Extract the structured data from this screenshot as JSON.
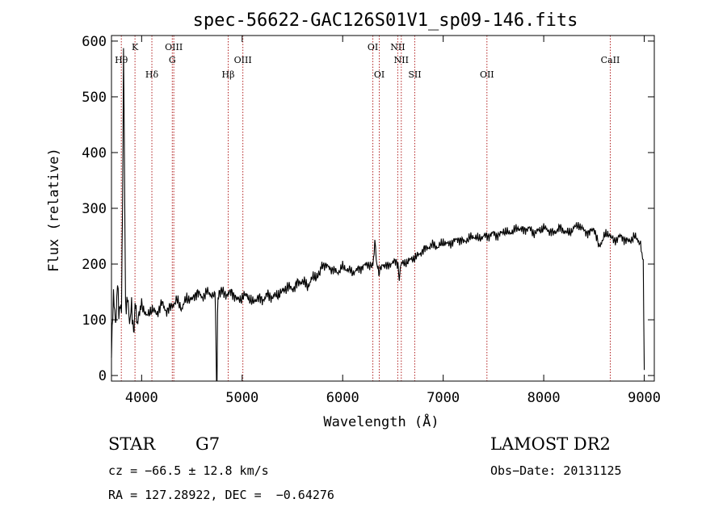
{
  "chart_data": {
    "type": "line",
    "title": "spec-56622-GAC126S01V1_sp09-146.fits",
    "xlabel": "Wavelength (Å)",
    "ylabel": "Flux (relative)",
    "xlim": [
      3700,
      9100
    ],
    "ylim": [
      -10,
      610
    ],
    "xticks": [
      4000,
      5000,
      6000,
      7000,
      8000,
      9000
    ],
    "yticks": [
      0,
      100,
      200,
      300,
      400,
      500,
      600
    ],
    "series": [
      {
        "x": [
          3700,
          3720,
          3740,
          3760,
          3780,
          3800,
          3815,
          3820,
          3840,
          3860,
          3880,
          3900,
          3920,
          3935,
          3950,
          3980,
          4000,
          4050,
          4100,
          4150,
          4200,
          4250,
          4300,
          4350,
          4400,
          4450,
          4500,
          4550,
          4600,
          4650,
          4700,
          4730,
          4740,
          4745,
          4750,
          4755,
          4760,
          4770,
          4800,
          4850,
          4900,
          4950,
          5000,
          5050,
          5100,
          5150,
          5200,
          5250,
          5300,
          5350,
          5400,
          5450,
          5500,
          5550,
          5600,
          5650,
          5700,
          5750,
          5780,
          5800,
          5850,
          5900,
          5950,
          6000,
          6050,
          6100,
          6150,
          6200,
          6250,
          6300,
          6320,
          6340,
          6360,
          6400,
          6450,
          6500,
          6550,
          6563,
          6580,
          6600,
          6650,
          6700,
          6750,
          6800,
          6850,
          6900,
          6950,
          7000,
          7050,
          7100,
          7150,
          7200,
          7250,
          7300,
          7350,
          7400,
          7450,
          7500,
          7550,
          7600,
          7650,
          7700,
          7750,
          7800,
          7850,
          7900,
          7950,
          8000,
          8050,
          8100,
          8150,
          8200,
          8250,
          8300,
          8350,
          8400,
          8450,
          8500,
          8550,
          8600,
          8650,
          8700,
          8750,
          8800,
          8850,
          8900,
          8950,
          8970,
          8990,
          9000
        ],
        "y": [
          40,
          150,
          90,
          160,
          110,
          130,
          420,
          600,
          120,
          140,
          95,
          125,
          80,
          130,
          95,
          120,
          130,
          105,
          120,
          110,
          130,
          115,
          125,
          135,
          120,
          140,
          135,
          150,
          140,
          150,
          145,
          150,
          60,
          -10,
          -10,
          120,
          140,
          145,
          150,
          145,
          150,
          135,
          140,
          145,
          130,
          140,
          135,
          145,
          140,
          145,
          150,
          160,
          155,
          165,
          170,
          160,
          175,
          180,
          190,
          200,
          195,
          190,
          185,
          195,
          190,
          185,
          190,
          195,
          200,
          195,
          240,
          200,
          185,
          200,
          195,
          205,
          200,
          170,
          205,
          200,
          205,
          210,
          215,
          225,
          230,
          235,
          230,
          240,
          235,
          240,
          245,
          240,
          245,
          250,
          245,
          250,
          250,
          255,
          250,
          260,
          255,
          260,
          265,
          260,
          265,
          255,
          260,
          265,
          260,
          255,
          265,
          260,
          255,
          265,
          270,
          260,
          255,
          265,
          230,
          250,
          255,
          240,
          250,
          245,
          240,
          250,
          240,
          230,
          200,
          10
        ]
      }
    ],
    "lines": [
      {
        "label": "Hθ",
        "x": 3798,
        "row": 2
      },
      {
        "label": "K",
        "x": 3934,
        "row": 1
      },
      {
        "label": "Hδ",
        "x": 4102,
        "row": 3
      },
      {
        "label": "OIII",
        "x": 4320,
        "row": 1
      },
      {
        "label": "G",
        "x": 4305,
        "row": 2
      },
      {
        "label": "Hβ",
        "x": 4861,
        "row": 3
      },
      {
        "label": "OIII",
        "x": 5007,
        "row": 2
      },
      {
        "label": "OI",
        "x": 6300,
        "row": 1
      },
      {
        "label": "OI",
        "x": 6364,
        "row": 3
      },
      {
        "label": "NII",
        "x": 6548,
        "row": 1
      },
      {
        "label": "NII",
        "x": 6583,
        "row": 2
      },
      {
        "label": "SII",
        "x": 6717,
        "row": 3
      },
      {
        "label": "OII",
        "x": 7435,
        "row": 3
      },
      {
        "label": "CaII",
        "x": 8662,
        "row": 2
      }
    ]
  },
  "info": {
    "object_type": "STAR",
    "subclass": "G7",
    "survey": "LAMOST DR2",
    "cz": "cz = −66.5 ± 12.8 km/s",
    "obs_date": "Obs−Date: 20131125",
    "coords": "RA = 127.28922, DEC =  −0.64276"
  }
}
